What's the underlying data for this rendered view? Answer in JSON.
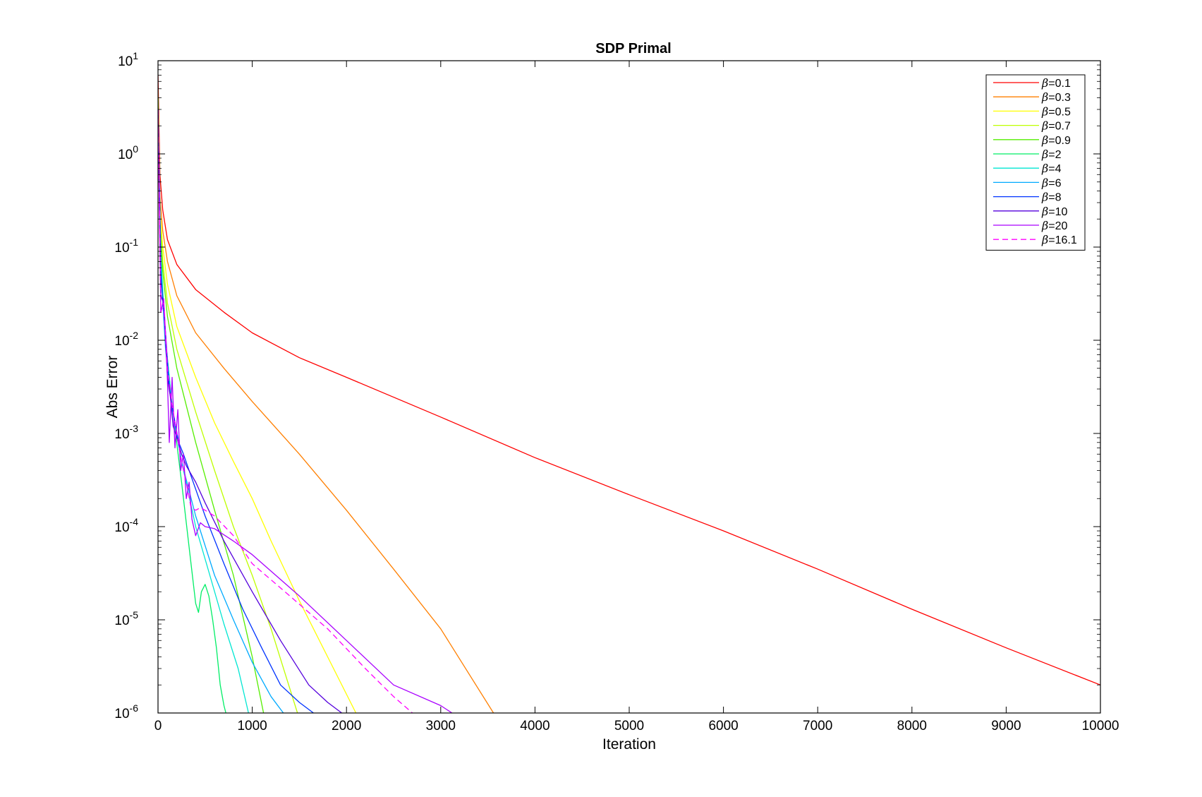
{
  "chart_data": {
    "type": "line",
    "title": "SDP Primal",
    "xlabel": "Iteration",
    "ylabel": "Abs Error",
    "xlim": [
      0,
      10000
    ],
    "ylim": [
      1e-06,
      10
    ],
    "yscale": "log",
    "grid": false,
    "legend_position": "top-right",
    "x_ticks": [
      "0",
      "1000",
      "2000",
      "3000",
      "4000",
      "5000",
      "6000",
      "7000",
      "8000",
      "9000",
      "10000"
    ],
    "y_ticks": [
      {
        "base": "10",
        "exp": "1"
      },
      {
        "base": "10",
        "exp": "0"
      },
      {
        "base": "10",
        "exp": "-1"
      },
      {
        "base": "10",
        "exp": "-2"
      },
      {
        "base": "10",
        "exp": "-3"
      },
      {
        "base": "10",
        "exp": "-4"
      },
      {
        "base": "10",
        "exp": "-5"
      },
      {
        "base": "10",
        "exp": "-6"
      }
    ],
    "series": [
      {
        "name": "=0.1",
        "color": "#ff0000",
        "dash": false,
        "x": [
          0,
          20,
          50,
          100,
          200,
          400,
          700,
          1000,
          1500,
          2000,
          3000,
          4000,
          5000,
          6000,
          7000,
          8000,
          9000,
          10000
        ],
        "y": [
          7,
          0.6,
          0.25,
          0.12,
          0.065,
          0.035,
          0.02,
          0.012,
          0.0065,
          0.004,
          0.0015,
          0.00055,
          0.00022,
          9e-05,
          3.5e-05,
          1.3e-05,
          5e-06,
          2e-06
        ]
      },
      {
        "name": "=0.3",
        "color": "#ff7f00",
        "dash": false,
        "x": [
          0,
          20,
          50,
          100,
          200,
          400,
          700,
          1000,
          1500,
          2000,
          2500,
          3000,
          3560
        ],
        "y": [
          5,
          0.35,
          0.15,
          0.07,
          0.03,
          0.012,
          0.005,
          0.0022,
          0.0006,
          0.00015,
          3.5e-05,
          8e-06,
          1e-06
        ]
      },
      {
        "name": "=0.5",
        "color": "#ffff00",
        "dash": false,
        "x": [
          0,
          20,
          50,
          100,
          200,
          400,
          600,
          800,
          1000,
          1200,
          1500,
          1800,
          2100
        ],
        "y": [
          4,
          0.25,
          0.1,
          0.04,
          0.014,
          0.004,
          0.0013,
          0.0005,
          0.0002,
          7e-05,
          1.6e-05,
          4e-06,
          1e-06
        ]
      },
      {
        "name": "=0.7",
        "color": "#bfff00",
        "dash": false,
        "x": [
          0,
          20,
          50,
          100,
          200,
          400,
          600,
          800,
          1000,
          1200,
          1480
        ],
        "y": [
          4,
          0.2,
          0.07,
          0.025,
          0.008,
          0.0017,
          0.0004,
          0.0001,
          3e-05,
          8e-06,
          1e-06
        ]
      },
      {
        "name": "=0.9",
        "color": "#55ee00",
        "dash": false,
        "x": [
          0,
          20,
          50,
          100,
          200,
          400,
          600,
          800,
          1000,
          1120
        ],
        "y": [
          4,
          0.18,
          0.055,
          0.018,
          0.005,
          0.0008,
          0.00015,
          3e-05,
          4e-06,
          1e-06
        ]
      },
      {
        "name": "=2",
        "color": "#00ee66",
        "dash": false,
        "x": [
          0,
          30,
          80,
          150,
          250,
          350,
          400,
          430,
          460,
          500,
          540,
          580,
          620,
          660,
          700,
          720
        ],
        "y": [
          3,
          0.08,
          0.01,
          0.002,
          0.0003,
          4e-05,
          1.5e-05,
          1.2e-05,
          2e-05,
          2.4e-05,
          1.8e-05,
          1e-05,
          5e-06,
          2e-06,
          1.2e-06,
          1e-06
        ]
      },
      {
        "name": "=4",
        "color": "#00e6d2",
        "dash": false,
        "x": [
          0,
          30,
          80,
          150,
          250,
          400,
          550,
          700,
          850,
          960
        ],
        "y": [
          3,
          0.07,
          0.01,
          0.002,
          0.0005,
          0.0001,
          3e-05,
          9e-06,
          3e-06,
          1e-06
        ]
      },
      {
        "name": "=6",
        "color": "#00aaff",
        "dash": false,
        "x": [
          0,
          30,
          80,
          150,
          250,
          400,
          600,
          800,
          1000,
          1200,
          1330
        ],
        "y": [
          3,
          0.06,
          0.008,
          0.0018,
          0.0005,
          0.00013,
          3e-05,
          1e-05,
          3.5e-06,
          1.5e-06,
          1e-06
        ]
      },
      {
        "name": "=8",
        "color": "#0033ff",
        "dash": false,
        "x": [
          0,
          30,
          80,
          120,
          170,
          220,
          270,
          350,
          500,
          700,
          900,
          1100,
          1300,
          1500,
          1650
        ],
        "y": [
          3,
          0.05,
          0.012,
          0.003,
          0.0015,
          0.0008,
          0.0006,
          0.00035,
          0.00013,
          4e-05,
          1.3e-05,
          5e-06,
          2e-06,
          1.3e-06,
          1e-06
        ]
      },
      {
        "name": "=10",
        "color": "#5500dd",
        "dash": false,
        "x": [
          0,
          30,
          60,
          100,
          130,
          160,
          200,
          250,
          300,
          400,
          500,
          700,
          1000,
          1300,
          1600,
          1800,
          1950
        ],
        "y": [
          3,
          0.03,
          0.025,
          0.004,
          0.0025,
          0.0012,
          0.0009,
          0.0006,
          0.00045,
          0.0003,
          0.00018,
          7e-05,
          2e-05,
          6e-06,
          2e-06,
          1.3e-06,
          1e-06
        ]
      },
      {
        "name": "=20",
        "color": "#aa00ff",
        "dash": false,
        "x": [
          0,
          30,
          60,
          90,
          120,
          150,
          180,
          210,
          240,
          270,
          300,
          330,
          360,
          400,
          450,
          500,
          600,
          800,
          1000,
          1500,
          2000,
          2500,
          3000,
          3120
        ],
        "y": [
          3,
          0.02,
          0.028,
          0.008,
          0.0008,
          0.004,
          0.0007,
          0.0018,
          0.0004,
          0.0006,
          0.0002,
          0.0003,
          0.00012,
          8e-05,
          0.00011,
          0.0001,
          9.5e-05,
          7e-05,
          5e-05,
          1.8e-05,
          6e-06,
          2e-06,
          1.2e-06,
          1e-06
        ]
      },
      {
        "name": "=16.1",
        "color": "#ff00ff",
        "dash": true,
        "x": [
          0,
          30,
          60,
          100,
          150,
          200,
          250,
          300,
          350,
          400,
          450,
          500,
          600,
          800,
          1000,
          1400,
          1800,
          2200,
          2500,
          2700
        ],
        "y": [
          3,
          0.02,
          0.025,
          0.005,
          0.002,
          0.001,
          0.0005,
          0.0003,
          0.00016,
          0.00015,
          0.00016,
          0.00015,
          0.00013,
          8e-05,
          4e-05,
          1.8e-05,
          8e-06,
          3e-06,
          1.5e-06,
          1e-06
        ]
      }
    ]
  }
}
